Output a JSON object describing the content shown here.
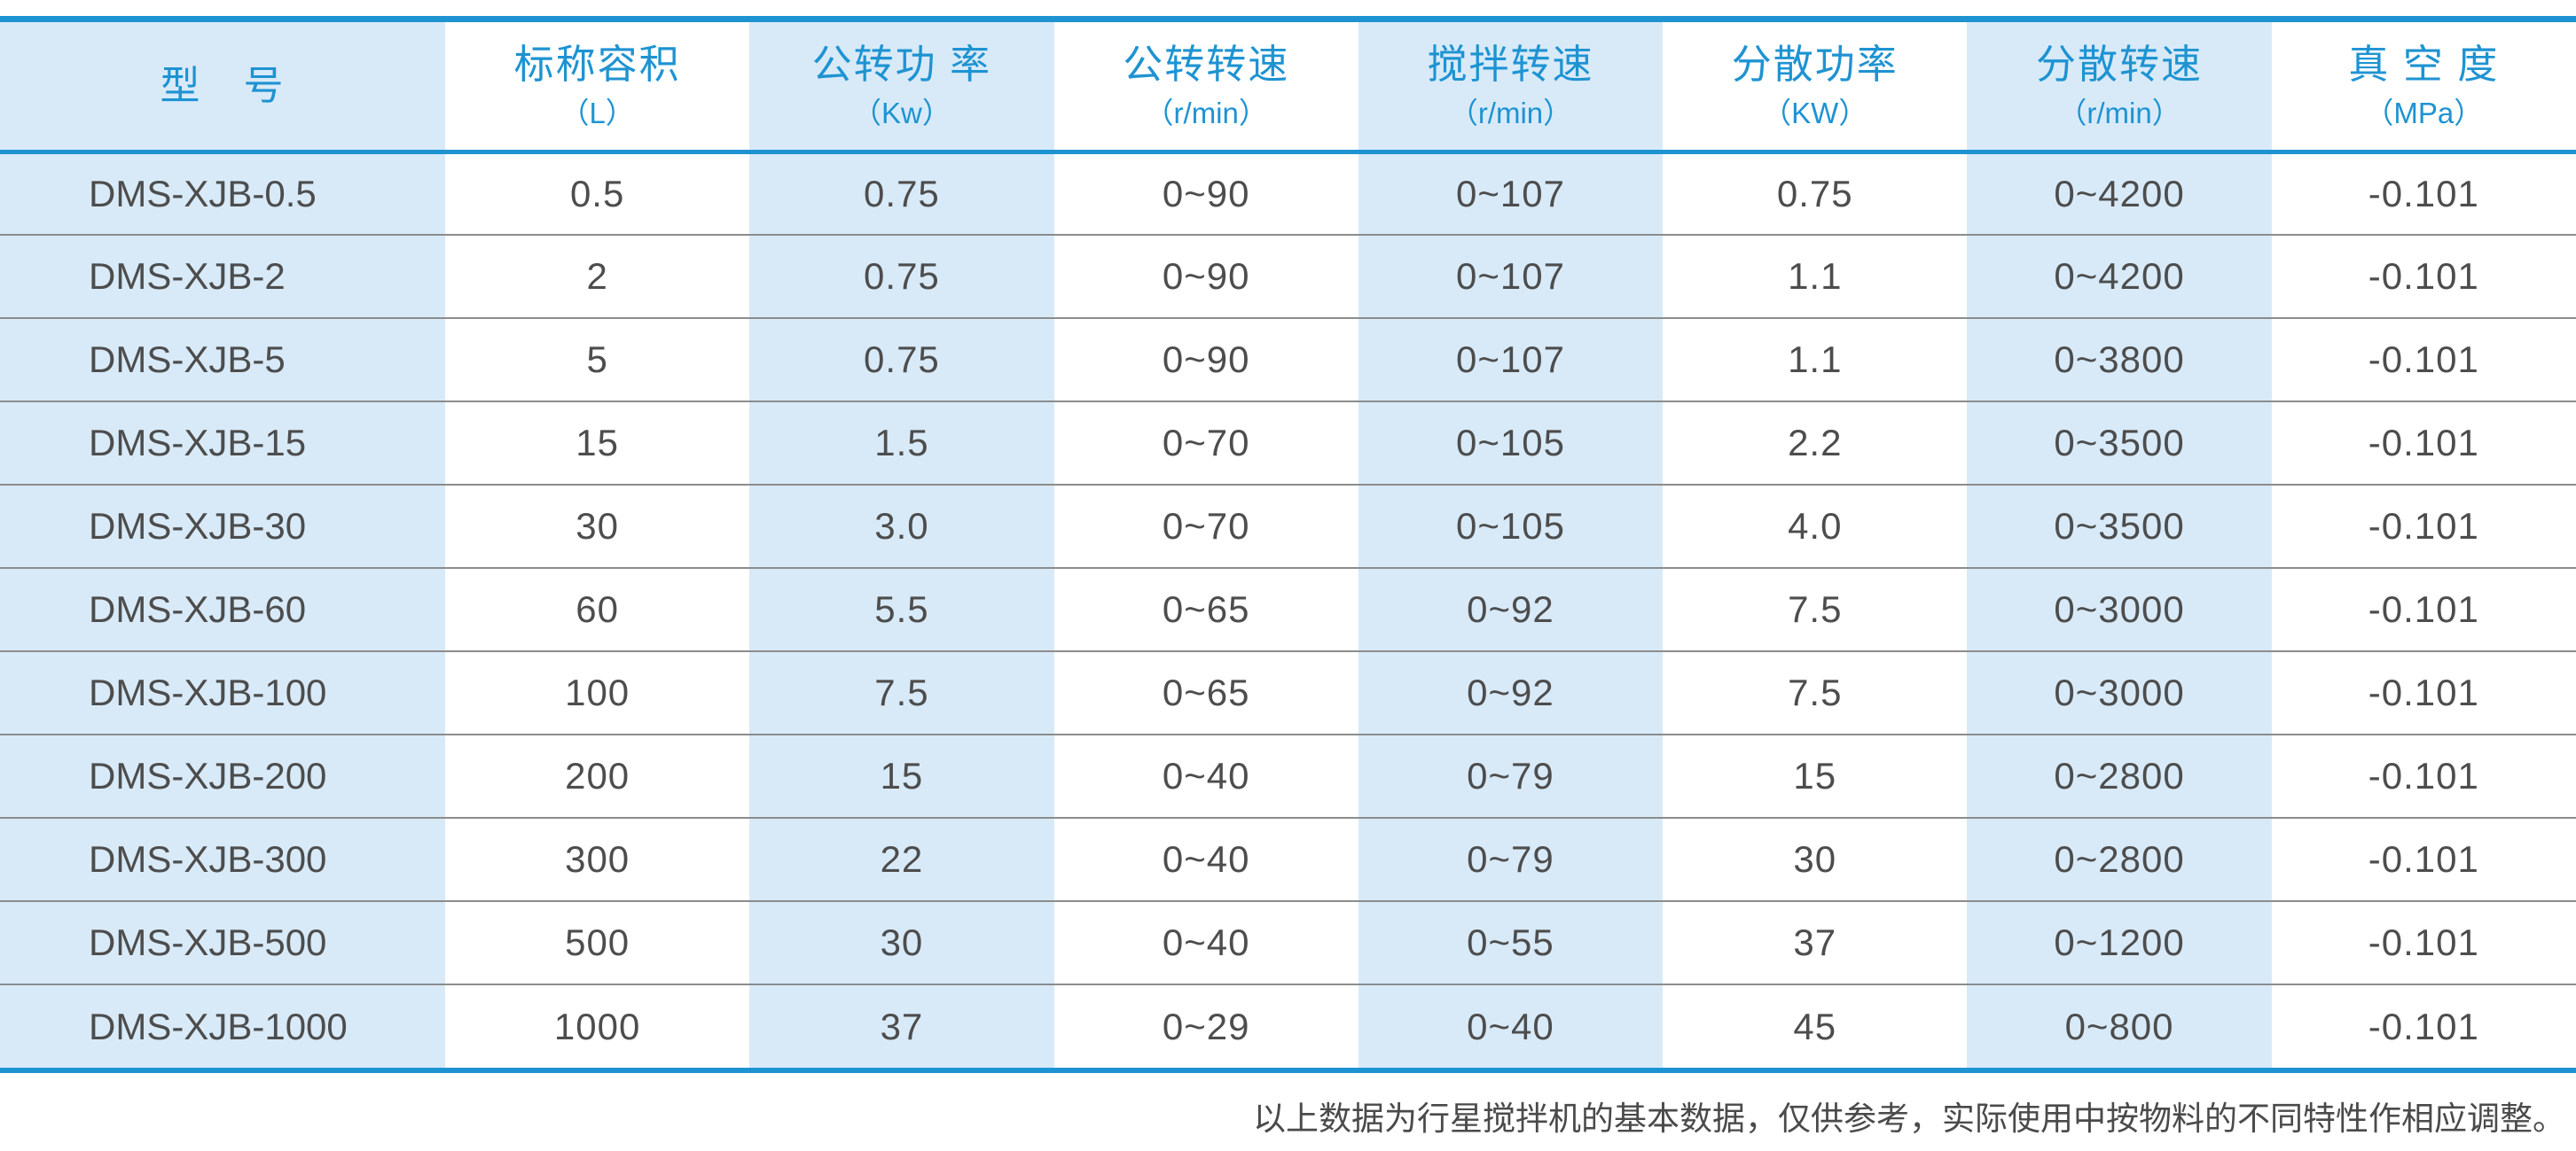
{
  "colors": {
    "accent": "#1E93D2",
    "stripe": "#D8EAF8",
    "text": "#4D4D4D",
    "separator": "#8C8C8C"
  },
  "table": {
    "columns": [
      {
        "key": "model",
        "label": "型　号",
        "unit": "",
        "striped": true
      },
      {
        "key": "nominal_volume",
        "label": "标称容积",
        "unit": "（L）",
        "striped": false
      },
      {
        "key": "revolution_power",
        "label": "公转功 率",
        "unit": "（Kw）",
        "striped": true
      },
      {
        "key": "revolution_speed",
        "label": "公转转速",
        "unit": "（r/min）",
        "striped": false
      },
      {
        "key": "stirring_speed",
        "label": "搅拌转速",
        "unit": "（r/min）",
        "striped": true
      },
      {
        "key": "dispersing_power",
        "label": "分散功率",
        "unit": "（KW）",
        "striped": false
      },
      {
        "key": "dispersing_speed",
        "label": "分散转速",
        "unit": "（r/min）",
        "striped": true
      },
      {
        "key": "vacuum_degree",
        "label": "真 空 度",
        "unit": "（MPa）",
        "striped": false
      }
    ],
    "rows": [
      [
        "DMS-XJB-0.5",
        "0.5",
        "0.75",
        "0~90",
        "0~107",
        "0.75",
        "0~4200",
        "-0.101"
      ],
      [
        "DMS-XJB-2",
        "2",
        "0.75",
        "0~90",
        "0~107",
        "1.1",
        "0~4200",
        "-0.101"
      ],
      [
        "DMS-XJB-5",
        "5",
        "0.75",
        "0~90",
        "0~107",
        "1.1",
        "0~3800",
        "-0.101"
      ],
      [
        "DMS-XJB-15",
        "15",
        "1.5",
        "0~70",
        "0~105",
        "2.2",
        "0~3500",
        "-0.101"
      ],
      [
        "DMS-XJB-30",
        "30",
        "3.0",
        "0~70",
        "0~105",
        "4.0",
        "0~3500",
        "-0.101"
      ],
      [
        "DMS-XJB-60",
        "60",
        "5.5",
        "0~65",
        "0~92",
        "7.5",
        "0~3000",
        "-0.101"
      ],
      [
        "DMS-XJB-100",
        "100",
        "7.5",
        "0~65",
        "0~92",
        "7.5",
        "0~3000",
        "-0.101"
      ],
      [
        "DMS-XJB-200",
        "200",
        "15",
        "0~40",
        "0~79",
        "15",
        "0~2800",
        "-0.101"
      ],
      [
        "DMS-XJB-300",
        "300",
        "22",
        "0~40",
        "0~79",
        "30",
        "0~2800",
        "-0.101"
      ],
      [
        "DMS-XJB-500",
        "500",
        "30",
        "0~40",
        "0~55",
        "37",
        "0~1200",
        "-0.101"
      ],
      [
        "DMS-XJB-1000",
        "1000",
        "37",
        "0~29",
        "0~40",
        "45",
        "0~800",
        "-0.101"
      ]
    ]
  },
  "footer": {
    "note": "以上数据为行星搅拌机的基本数据，仅供参考，实际使用中按物料的不同特性作相应调整。"
  }
}
